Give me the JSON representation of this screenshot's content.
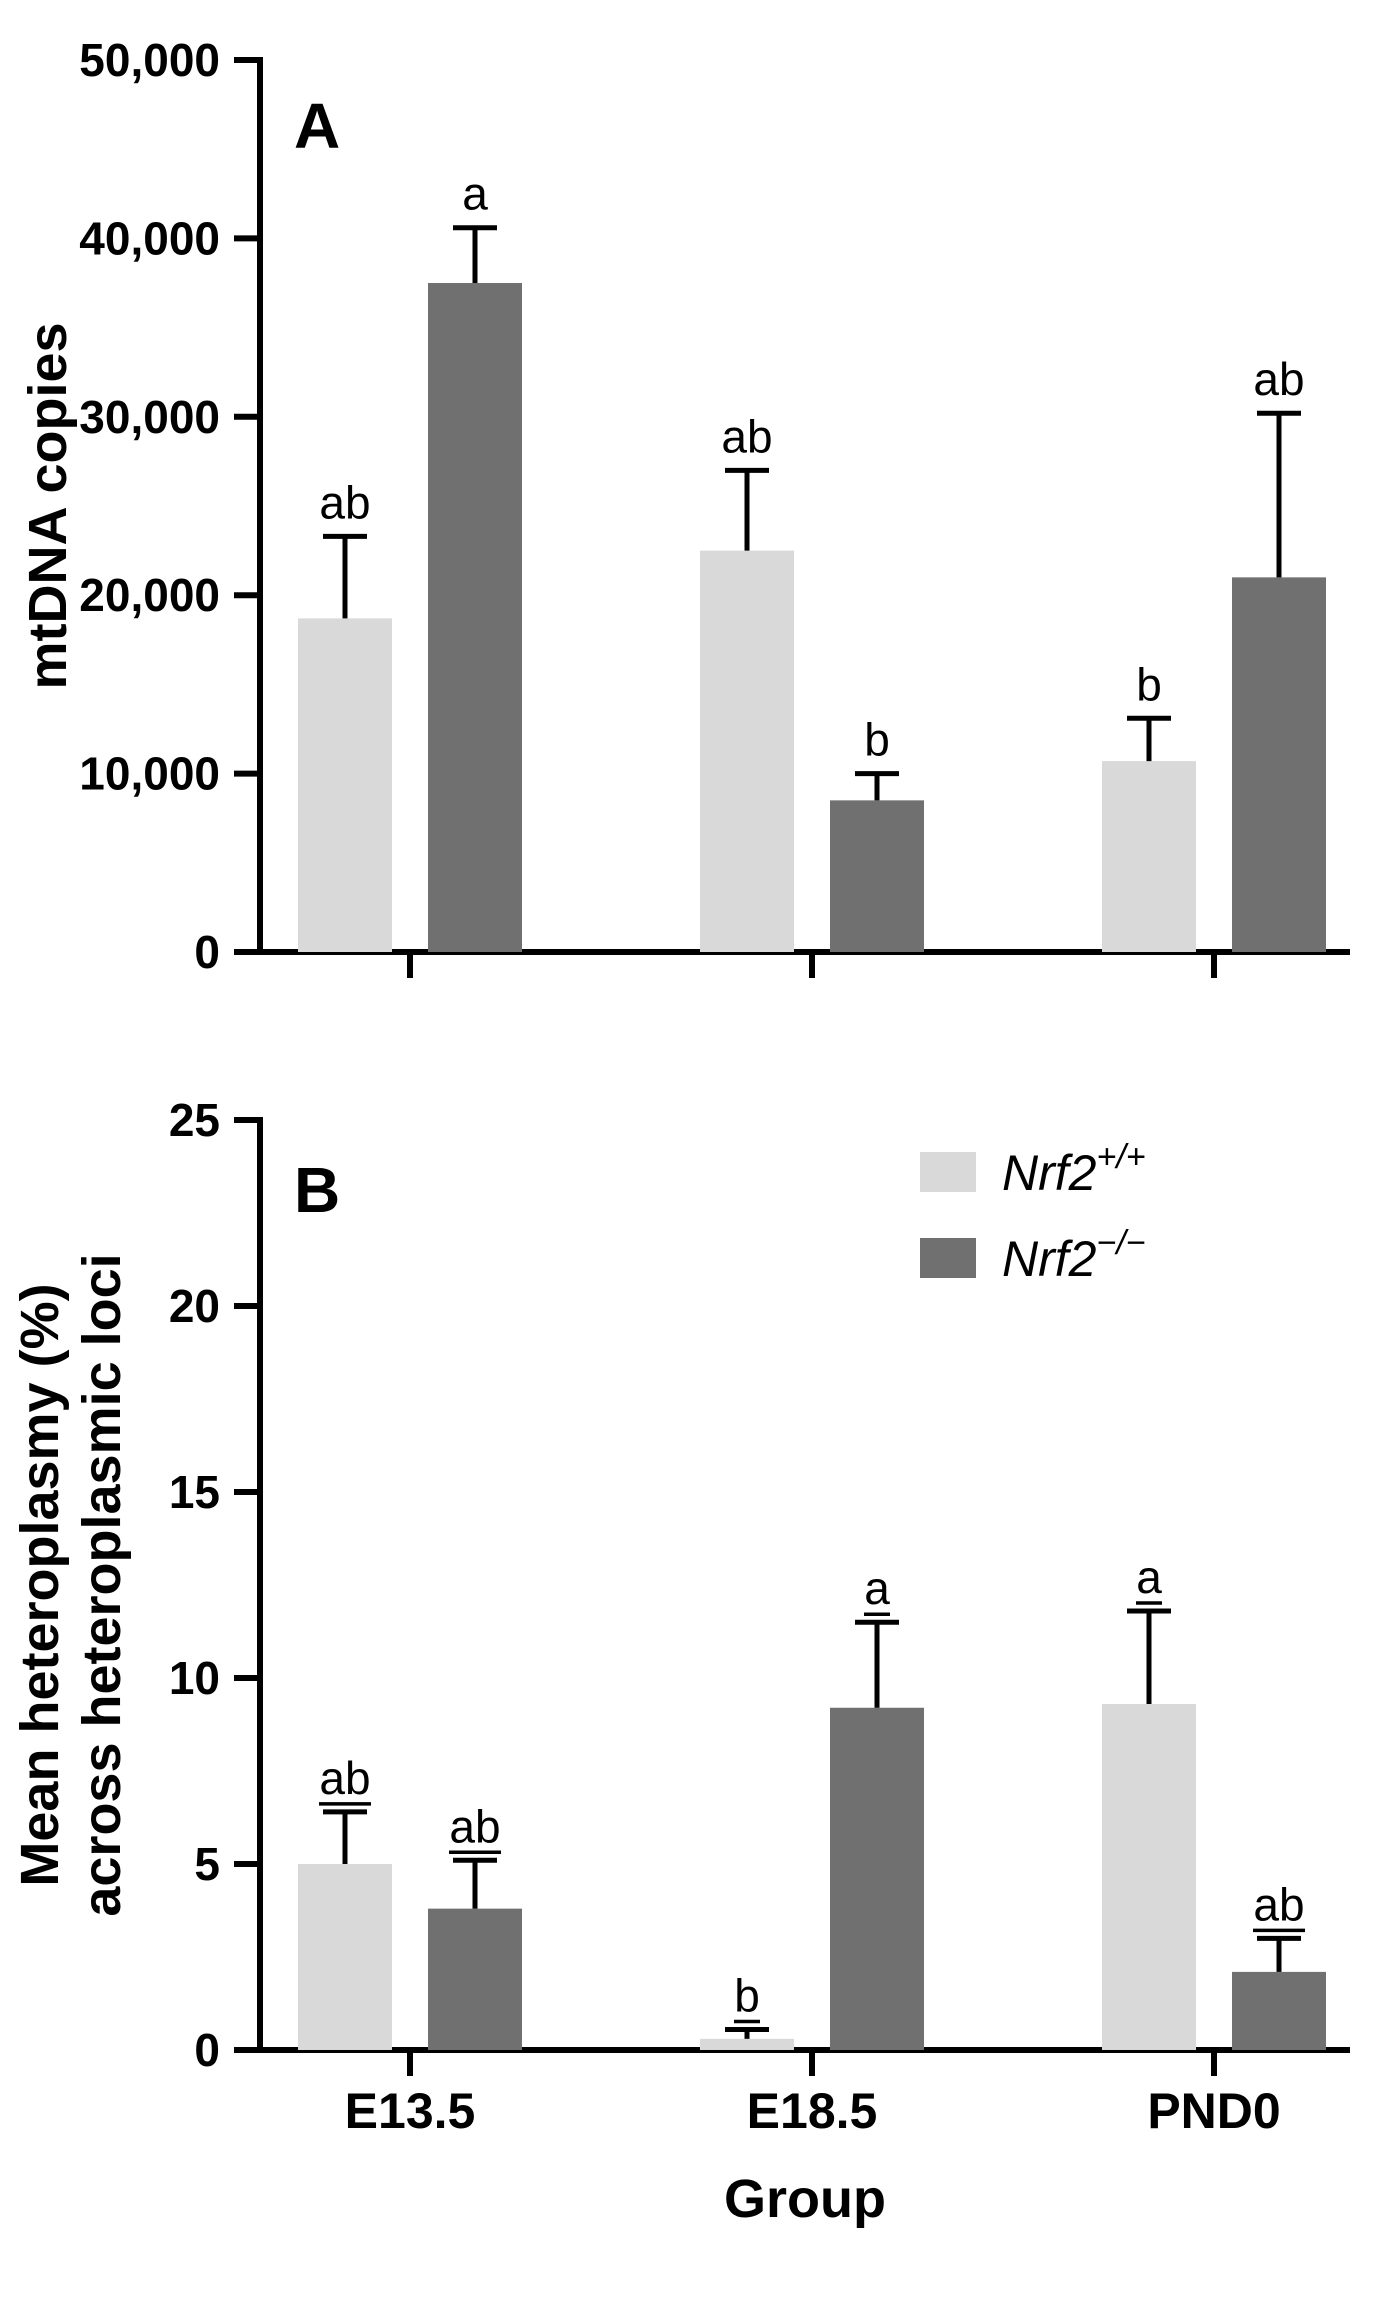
{
  "figure": {
    "background": "#ffffff",
    "axis_color": "#000000"
  },
  "legend": {
    "items": [
      {
        "name": "Nrf2+/+",
        "base": "Nrf2",
        "sup": "+/+",
        "color": "#d9d9d9"
      },
      {
        "name": "Nrf2-/-",
        "base": "Nrf2",
        "sup": "−/−",
        "color": "#707070"
      }
    ]
  },
  "chart_data": [
    {
      "id": "panel-A",
      "type": "bar",
      "panel_label": "A",
      "title": "",
      "ylabel": "mtDNA copies",
      "xlabel": "",
      "ylim": [
        0,
        50000
      ],
      "yticks": [
        0,
        10000,
        20000,
        30000,
        40000,
        50000
      ],
      "ytick_labels": [
        "0",
        "10,000",
        "20,000",
        "30,000",
        "40,000",
        "50,000"
      ],
      "categories": [
        "E13.5",
        "E18.5",
        "PND0"
      ],
      "show_x_labels": false,
      "grid": false,
      "error_bars": "upper SD only",
      "sig_underline": false,
      "series": [
        {
          "name": "Nrf2+/+",
          "color": "#d9d9d9",
          "values": [
            18700,
            22500,
            10700
          ],
          "errors_up": [
            4600,
            4500,
            2400
          ],
          "sig_letters": [
            "ab",
            "ab",
            "b"
          ]
        },
        {
          "name": "Nrf2-/-",
          "color": "#707070",
          "values": [
            37500,
            8500,
            21000
          ],
          "errors_up": [
            3100,
            1500,
            9200
          ],
          "sig_letters": [
            "a",
            "b",
            "ab"
          ]
        }
      ]
    },
    {
      "id": "panel-B",
      "type": "bar",
      "panel_label": "B",
      "title": "",
      "ylabel_lines": [
        "Mean heteroplasmy (%)",
        "across heteroplasmic loci"
      ],
      "xlabel": "Group",
      "ylim": [
        0,
        25
      ],
      "yticks": [
        0,
        5,
        10,
        15,
        20,
        25
      ],
      "ytick_labels": [
        "0",
        "5",
        "10",
        "15",
        "20",
        "25"
      ],
      "categories": [
        "E13.5",
        "E18.5",
        "PND0"
      ],
      "show_x_labels": true,
      "grid": false,
      "error_bars": "upper SD only",
      "sig_underline": true,
      "legend_position": "upper right",
      "series": [
        {
          "name": "Nrf2+/+",
          "color": "#d9d9d9",
          "values": [
            5.0,
            0.3,
            9.3
          ],
          "errors_up": [
            1.4,
            0.25,
            2.5
          ],
          "sig_letters": [
            "ab",
            "b",
            "a"
          ]
        },
        {
          "name": "Nrf2-/-",
          "color": "#707070",
          "values": [
            3.8,
            9.2,
            2.1
          ],
          "errors_up": [
            1.3,
            2.3,
            0.9
          ],
          "sig_letters": [
            "ab",
            "a",
            "ab"
          ]
        }
      ]
    }
  ]
}
